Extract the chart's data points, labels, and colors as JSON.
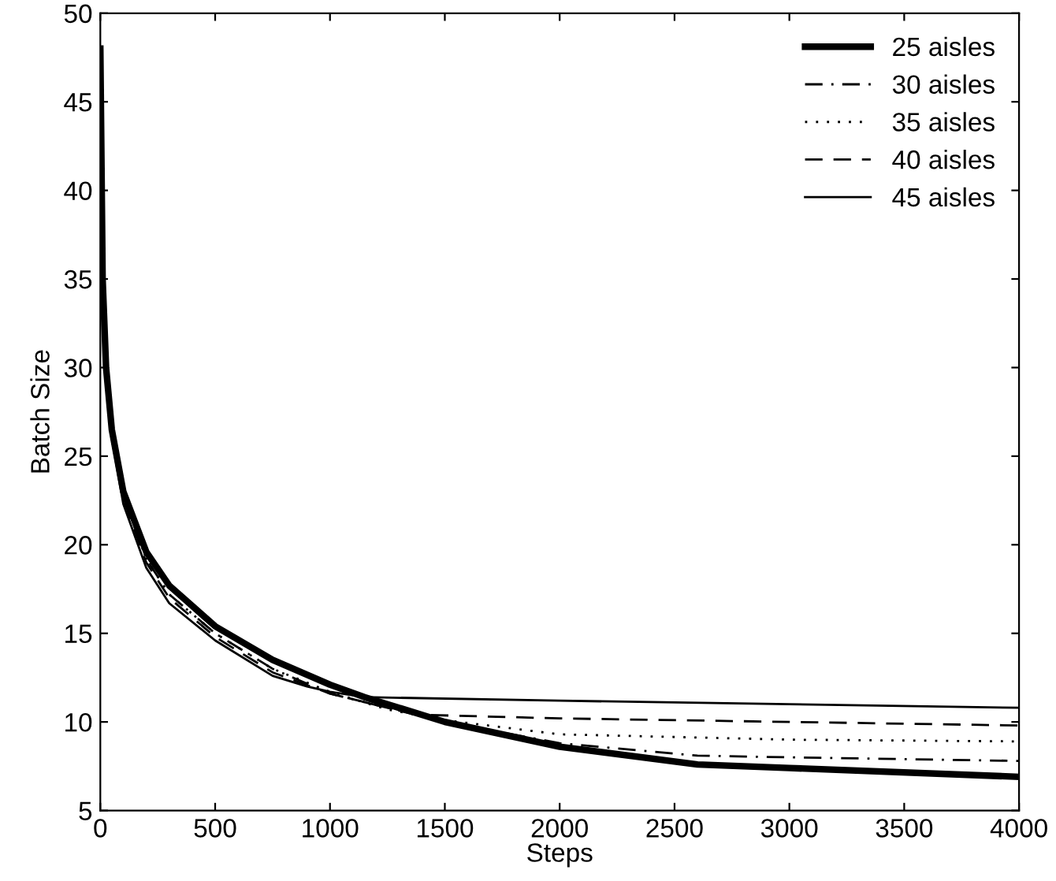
{
  "chart_data": {
    "type": "line",
    "xlabel": "Steps",
    "ylabel": "Batch Size",
    "xlim": [
      0,
      4000
    ],
    "xticks": [
      0,
      500,
      1000,
      1500,
      2000,
      2500,
      3000,
      3500,
      4000
    ],
    "ylim": [
      5,
      50
    ],
    "yticks": [
      5,
      10,
      15,
      20,
      25,
      30,
      35,
      40,
      45,
      50
    ],
    "grid": false,
    "legend": "top right",
    "series": [
      {
        "name": "25 aisles",
        "color": "#000000",
        "line_style": "solid",
        "x": [
          0,
          10,
          25,
          50,
          100,
          200,
          300,
          500,
          750,
          1000,
          1150,
          1500,
          2000,
          2600,
          3000,
          4000
        ],
        "values": [
          48,
          35,
          30,
          26.5,
          23,
          19.6,
          17.7,
          15.4,
          13.5,
          12.1,
          11.4,
          10.0,
          8.6,
          7.6,
          7.4,
          6.9
        ]
      },
      {
        "name": "30 aisles",
        "color": "#000000",
        "line_style": "dashdot",
        "x": [
          0,
          10,
          25,
          50,
          100,
          200,
          300,
          500,
          750,
          1000,
          1250,
          1500,
          2000,
          2600,
          3000,
          4000
        ],
        "values": [
          48,
          35,
          30,
          26.3,
          22.8,
          19.2,
          17.2,
          15.0,
          13.0,
          11.6,
          10.8,
          10.0,
          8.8,
          8.1,
          8.0,
          7.8
        ]
      },
      {
        "name": "35 aisles",
        "color": "#000000",
        "line_style": "dotted",
        "x": [
          0,
          10,
          25,
          50,
          100,
          200,
          300,
          500,
          750,
          1000,
          1250,
          1500,
          2000,
          3000,
          4000
        ],
        "values": [
          48,
          35,
          30,
          26.3,
          22.8,
          19.2,
          17.2,
          15.0,
          13.0,
          11.7,
          10.7,
          10.1,
          9.3,
          9.0,
          8.9
        ]
      },
      {
        "name": "40 aisles",
        "color": "#000000",
        "line_style": "dashed",
        "x": [
          0,
          10,
          25,
          50,
          100,
          200,
          300,
          500,
          750,
          1000,
          1250,
          1400,
          2000,
          3000,
          4000
        ],
        "values": [
          48,
          35,
          30,
          26.2,
          22.6,
          19.0,
          17.0,
          14.8,
          12.8,
          11.6,
          10.8,
          10.4,
          10.2,
          10.0,
          9.8
        ]
      },
      {
        "name": "45 aisles",
        "color": "#000000",
        "line_style": "solid",
        "x": [
          0,
          10,
          25,
          50,
          100,
          200,
          300,
          500,
          750,
          900,
          1000,
          1150,
          2000,
          3000,
          4000
        ],
        "values": [
          48,
          35,
          30,
          26.0,
          22.3,
          18.7,
          16.7,
          14.6,
          12.6,
          12.0,
          11.7,
          11.4,
          11.2,
          11.0,
          10.8
        ]
      }
    ]
  }
}
